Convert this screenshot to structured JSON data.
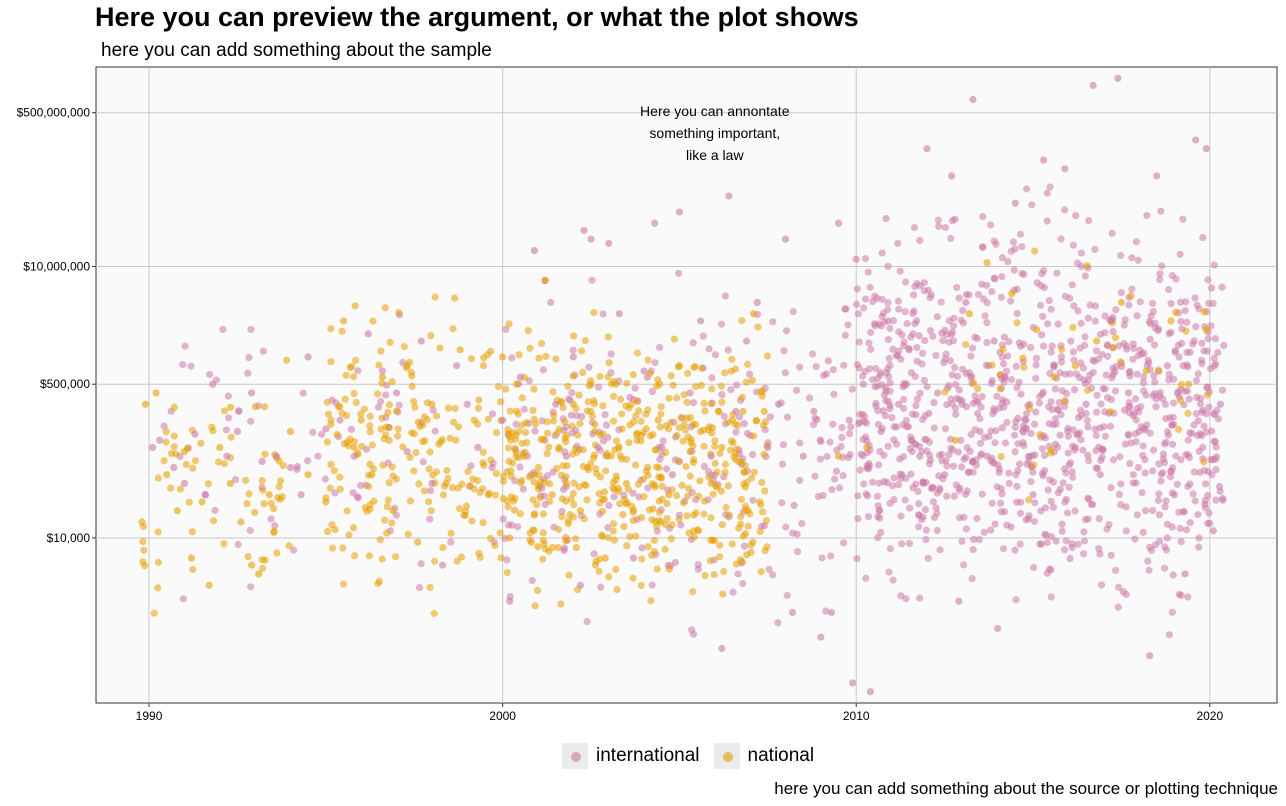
{
  "title": "Here you can preview the argument, or what the plot shows",
  "subtitle": "here you can add something about the sample",
  "caption": "here you can add something about the source or plotting technique",
  "colors": {
    "international": "#cc79a7",
    "national": "#e69f00",
    "panel": "#fafafa",
    "grid": "#c8c8c8"
  },
  "chart_data": {
    "type": "scatter",
    "x_scale": "linear",
    "y_scale": "log10",
    "xlim": [
      1988.5,
      2021.9
    ],
    "ylim": [
      150,
      1600000000
    ],
    "x_ticks": [
      1990,
      2000,
      2010,
      2020
    ],
    "x_tick_labels": [
      "1990",
      "2000",
      "2010",
      "2020"
    ],
    "y_ticks": [
      10000,
      500000,
      10000000,
      500000000
    ],
    "y_tick_labels": [
      "$10,000",
      "$500,000",
      "$10,000,000",
      "$500,000,000"
    ],
    "grid": true,
    "legend_position": "bottom",
    "annotation": {
      "lines": [
        "Here you can annontate",
        "something important,",
        "like a law"
      ],
      "x": 2006.0,
      "y": 300000000
    },
    "series": [
      {
        "name": "international",
        "color": "#cc79a7",
        "points": [
          [
            1990.1,
            100000
          ],
          [
            1990.3,
            120000
          ],
          [
            1990.7,
            60000
          ],
          [
            1991.0,
            40000
          ],
          [
            1991.3,
            140000
          ],
          [
            1991.6,
            30000
          ],
          [
            1991.8,
            500000
          ],
          [
            1992.2,
            80000
          ],
          [
            1992.5,
            150000
          ],
          [
            1992.9,
            400000
          ],
          [
            1993.2,
            70000
          ],
          [
            1993.6,
            80000
          ],
          [
            1994.0,
            60000
          ],
          [
            1994.3,
            30000
          ],
          [
            1994.5,
            1000000
          ],
          [
            1995.0,
            160000
          ],
          [
            1995.4,
            200000
          ],
          [
            1995.8,
            80000
          ],
          [
            1996.2,
            1800000
          ],
          [
            1996.6,
            700000
          ],
          [
            1997.0,
            400000
          ],
          [
            1997.3,
            90000
          ],
          [
            1997.7,
            1500000
          ],
          [
            1998.0,
            40000
          ],
          [
            1998.3,
            5000
          ],
          [
            1998.7,
            800000
          ],
          [
            1999.0,
            300000
          ],
          [
            1999.3,
            100000
          ],
          [
            1999.7,
            60000
          ],
          [
            2000.0,
            200000
          ],
          [
            2000.2,
            2000
          ],
          [
            2000.5,
            600000
          ],
          [
            2000.9,
            15000000
          ],
          [
            2001.2,
            7000000
          ],
          [
            2001.5,
            300000
          ],
          [
            2001.8,
            80000
          ],
          [
            2002.0,
            1000000
          ],
          [
            2002.2,
            3000
          ],
          [
            2002.3,
            25000000
          ],
          [
            2002.5,
            20000000
          ],
          [
            2002.7,
            100000
          ],
          [
            2003.0,
            18000000
          ],
          [
            2003.3,
            3000000
          ],
          [
            2003.7,
            6000
          ],
          [
            2004.0,
            700000
          ],
          [
            2004.3,
            30000000
          ],
          [
            2004.5,
            100000
          ],
          [
            2004.8,
            50000
          ],
          [
            2005.0,
            40000000
          ],
          [
            2005.3,
            400000
          ],
          [
            2005.6,
            2500000
          ],
          [
            2005.9,
            80000
          ],
          [
            2006.2,
            600
          ],
          [
            2006.4,
            60000000
          ],
          [
            2006.6,
            250000
          ],
          [
            2006.9,
            1500000
          ],
          [
            2007.2,
            4000000
          ],
          [
            2007.5,
            100000
          ],
          [
            2007.8,
            300000
          ],
          [
            2008.0,
            20000000
          ],
          [
            2008.2,
            1500
          ],
          [
            2008.5,
            80000
          ],
          [
            2008.8,
            250000
          ],
          [
            2009.0,
            800
          ],
          [
            2009.3,
            1500
          ],
          [
            2009.5,
            30000000
          ],
          [
            2009.8,
            200000
          ],
          [
            2009.9,
            250
          ],
          [
            2010.0,
            12000000
          ],
          [
            2010.2,
            500000
          ],
          [
            2010.4,
            200
          ],
          [
            2010.7,
            150000
          ],
          [
            2010.9,
            2500000
          ],
          [
            2011.2,
            300000
          ],
          [
            2011.5,
            1200000
          ],
          [
            2011.8,
            80000
          ],
          [
            2012.0,
            200000000
          ],
          [
            2012.3,
            400000
          ],
          [
            2012.5,
            50000
          ],
          [
            2012.7,
            100000000
          ],
          [
            2012.9,
            2000
          ],
          [
            2013.0,
            300000
          ],
          [
            2013.1,
            4000000
          ],
          [
            2013.3,
            700000000
          ],
          [
            2013.5,
            150000
          ],
          [
            2013.7,
            80000
          ],
          [
            2013.9,
            1500000
          ],
          [
            2014.0,
            1000
          ],
          [
            2014.2,
            600000
          ],
          [
            2014.5,
            50000000
          ],
          [
            2014.8,
            200000
          ],
          [
            2015.0,
            30000
          ],
          [
            2015.3,
            150000000
          ],
          [
            2015.6,
            800000
          ],
          [
            2015.9,
            120000000
          ],
          [
            2016.2,
            100000
          ],
          [
            2016.5,
            300000
          ],
          [
            2016.7,
            1000000000
          ],
          [
            2016.9,
            50000
          ],
          [
            2017.2,
            2500000
          ],
          [
            2017.4,
            1200000000
          ],
          [
            2017.7,
            400000
          ],
          [
            2018.0,
            150000
          ],
          [
            2018.3,
            500
          ],
          [
            2018.5,
            100000000
          ],
          [
            2018.8,
            800000
          ],
          [
            2019.0,
            30000
          ],
          [
            2019.3,
            4000
          ],
          [
            2019.6,
            250000000
          ],
          [
            2019.9,
            200000000
          ],
          [
            2020.1,
            12000
          ],
          [
            2020.3,
            300000
          ]
        ]
      },
      {
        "name": "national",
        "color": "#e69f00",
        "points": [
          [
            1989.8,
            15000
          ],
          [
            1989.9,
            300000
          ],
          [
            1990.2,
            400000
          ],
          [
            1990.5,
            50000
          ],
          [
            1990.8,
            20000
          ],
          [
            1991.0,
            90000
          ],
          [
            1991.2,
            6000
          ],
          [
            1991.5,
            25000
          ],
          [
            1991.7,
            3000
          ],
          [
            1992.0,
            100000
          ],
          [
            1992.3,
            40000
          ],
          [
            1992.6,
            15000
          ],
          [
            1992.9,
            5000
          ],
          [
            1993.1,
            4000
          ],
          [
            1993.4,
            30000
          ],
          [
            1994.0,
            150000
          ],
          [
            1994.5,
            50000
          ],
          [
            1995.0,
            25000
          ],
          [
            1995.5,
            2500000
          ],
          [
            1995.8,
            100000
          ],
          [
            1996.0,
            200000
          ],
          [
            1996.3,
            50000
          ],
          [
            1996.6,
            600000
          ],
          [
            1996.9,
            20000
          ],
          [
            1997.3,
            800000
          ],
          [
            1997.6,
            9000
          ],
          [
            1998.0,
            300000
          ],
          [
            1998.4,
            40000
          ],
          [
            1998.8,
            1200000
          ],
          [
            1999.2,
            200000
          ],
          [
            1999.6,
            30000
          ],
          [
            2000.0,
            1000000
          ],
          [
            2000.2,
            10000
          ],
          [
            2000.4,
            500000
          ],
          [
            2000.6,
            80000
          ],
          [
            2000.9,
            50000
          ],
          [
            2001.0,
            8000
          ],
          [
            2001.2,
            7000000
          ],
          [
            2001.4,
            30000
          ],
          [
            2001.6,
            100000
          ],
          [
            2001.8,
            40000
          ],
          [
            2002.0,
            300000
          ],
          [
            2002.2,
            20000
          ],
          [
            2002.4,
            60000
          ],
          [
            2002.6,
            150000
          ],
          [
            2002.9,
            6000
          ],
          [
            2003.2,
            500000
          ],
          [
            2003.5,
            40000
          ],
          [
            2003.8,
            120000
          ],
          [
            2004.1,
            60000
          ],
          [
            2004.4,
            200000
          ],
          [
            2004.7,
            30000
          ],
          [
            2005.0,
            800000
          ],
          [
            2005.3,
            90000
          ],
          [
            2005.6,
            150000
          ],
          [
            2005.9,
            40000
          ],
          [
            2006.2,
            100000
          ],
          [
            2006.5,
            200000
          ],
          [
            2006.8,
            250000
          ],
          [
            2007.1,
            3000000
          ],
          [
            2007.4,
            250000
          ],
          [
            2009.5,
            80000
          ],
          [
            2010.3,
            100000
          ],
          [
            2012.8,
            120000
          ],
          [
            2013.2,
            3000000
          ],
          [
            2013.7,
            11000000
          ],
          [
            2014.4,
            5000000
          ],
          [
            2015.1,
            2000000
          ],
          [
            2015.6,
            600000
          ],
          [
            2016.2,
            800000
          ],
          [
            2016.8,
            1500000
          ],
          [
            2017.5,
            4000000
          ],
          [
            2018.2,
            700000
          ],
          [
            2018.9,
            2500000
          ],
          [
            2019.4,
            500000
          ],
          [
            2019.9,
            2000000
          ]
        ]
      }
    ]
  }
}
